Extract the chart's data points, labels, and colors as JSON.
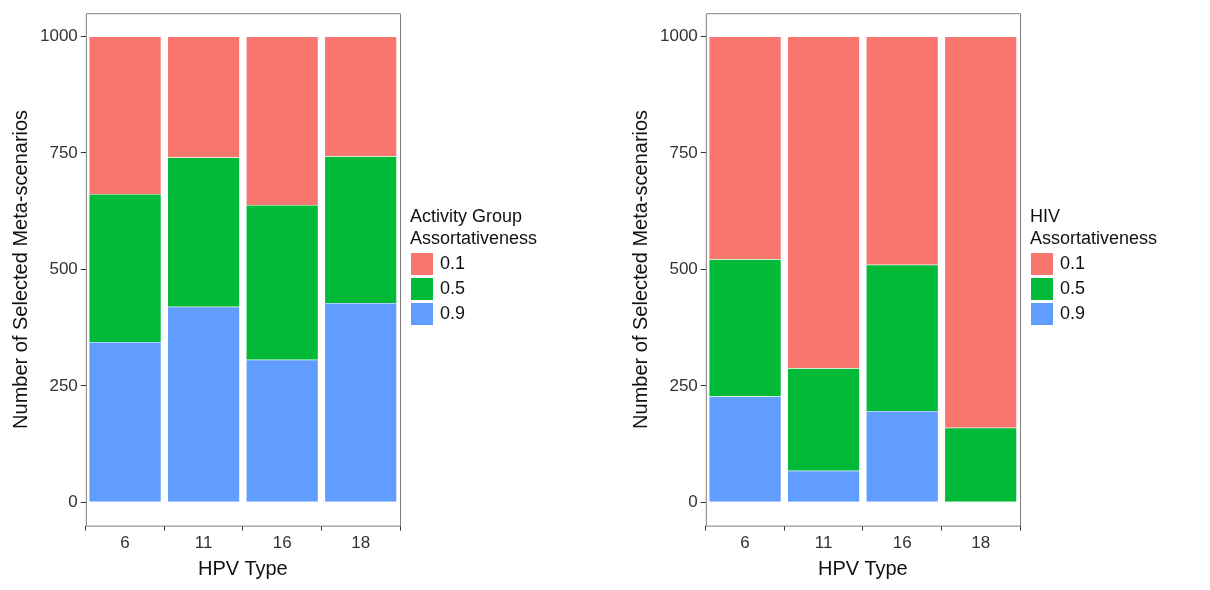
{
  "chart_data": [
    {
      "type": "bar",
      "stacked": true,
      "xlabel": "HPV Type",
      "ylabel": "Number of Selected Meta-scenarios",
      "legend_title": "Activity Group Assortativeness",
      "legend": "right",
      "grid": false,
      "categories": [
        "6",
        "11",
        "16",
        "18"
      ],
      "ylim": [
        -50,
        1050
      ],
      "yticks": [
        0,
        250,
        500,
        750,
        1000
      ],
      "series": [
        {
          "name": "0.9",
          "color": "#619cff",
          "values": [
            344,
            420,
            306,
            428
          ]
        },
        {
          "name": "0.5",
          "color": "#00ba38",
          "values": [
            318,
            320,
            332,
            315
          ]
        },
        {
          "name": "0.1",
          "color": "#f8766d",
          "values": [
            338,
            260,
            362,
            257
          ]
        }
      ]
    },
    {
      "type": "bar",
      "stacked": true,
      "xlabel": "HPV Type",
      "ylabel": "Number of Selected Meta-scenarios",
      "legend_title": "HIV Assortativeness",
      "legend": "right",
      "grid": false,
      "categories": [
        "6",
        "11",
        "16",
        "18"
      ],
      "ylim": [
        -50,
        1050
      ],
      "yticks": [
        0,
        250,
        500,
        750,
        1000
      ],
      "series": [
        {
          "name": "0.9",
          "color": "#619cff",
          "values": [
            227,
            68,
            196,
            null
          ]
        },
        {
          "name": "0.5",
          "color": "#00ba38",
          "values": [
            295,
            220,
            314,
            160
          ]
        },
        {
          "name": "0.1",
          "color": "#f8766d",
          "values": [
            478,
            712,
            490,
            840
          ]
        }
      ]
    }
  ]
}
